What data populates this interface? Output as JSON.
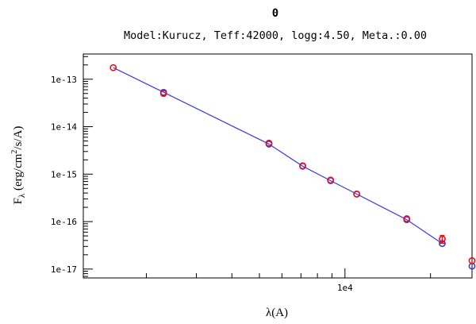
{
  "chart_data": {
    "type": "scatter",
    "title": "0",
    "subtitle": "Model:Kurucz, Teff:42000, logg:4.50, Meta.:0.00",
    "xlabel": "λ(A)",
    "ylabel_main": "F",
    "ylabel_sub": "λ",
    "ylabel_units_pre": " (erg/cm",
    "ylabel_units_sup": "2",
    "ylabel_units_post": "/s/A)",
    "x_scale": "log",
    "y_scale": "log",
    "xlim": [
      1200,
      28000
    ],
    "ylim": [
      6.5e-18,
      3.4e-13
    ],
    "x_tick_labels": [
      {
        "value": 10000,
        "label": "1e4"
      }
    ],
    "y_tick_labels": [
      {
        "value": 1e-13,
        "label": "1e-13"
      },
      {
        "value": 1e-14,
        "label": "1e-14"
      },
      {
        "value": 1e-15,
        "label": "1e-15"
      },
      {
        "value": 1e-16,
        "label": "1e-16"
      },
      {
        "value": 1e-17,
        "label": "1e-17"
      }
    ],
    "grid": false,
    "series": [
      {
        "role": "model",
        "marker": "line",
        "color": "#3a3adc",
        "x": [
          1530,
          2300,
          5400,
          7100,
          8900,
          11000,
          16500,
          22000
        ],
        "y": [
          1.75e-13,
          5.3e-14,
          4.3e-15,
          1.47e-15,
          7.3e-16,
          3.8e-16,
          1.1e-16,
          3.45e-17
        ]
      },
      {
        "role": "model-photometry",
        "marker": "open-circle",
        "color": "#3a3adc",
        "x": [
          2300,
          5400,
          7100,
          8900,
          11000,
          16500,
          22000,
          28000
        ],
        "y": [
          5.3e-14,
          4.3e-15,
          1.47e-15,
          7.3e-16,
          3.8e-16,
          1.1e-16,
          3.45e-17,
          1.15e-17
        ]
      },
      {
        "role": "observed",
        "marker": "open-circle-errorbar",
        "color": "#e8101a",
        "x": [
          1530,
          2300,
          5400,
          7100,
          8900,
          11000,
          16500,
          22000,
          28000
        ],
        "y": [
          1.75e-13,
          5e-14,
          4.5e-15,
          1.5e-15,
          7.5e-16,
          3.8e-16,
          1.15e-16,
          4.3e-17,
          1.5e-17
        ],
        "yerr": [
          0,
          0,
          0,
          0,
          0,
          0,
          0,
          8e-18,
          0
        ]
      }
    ]
  }
}
